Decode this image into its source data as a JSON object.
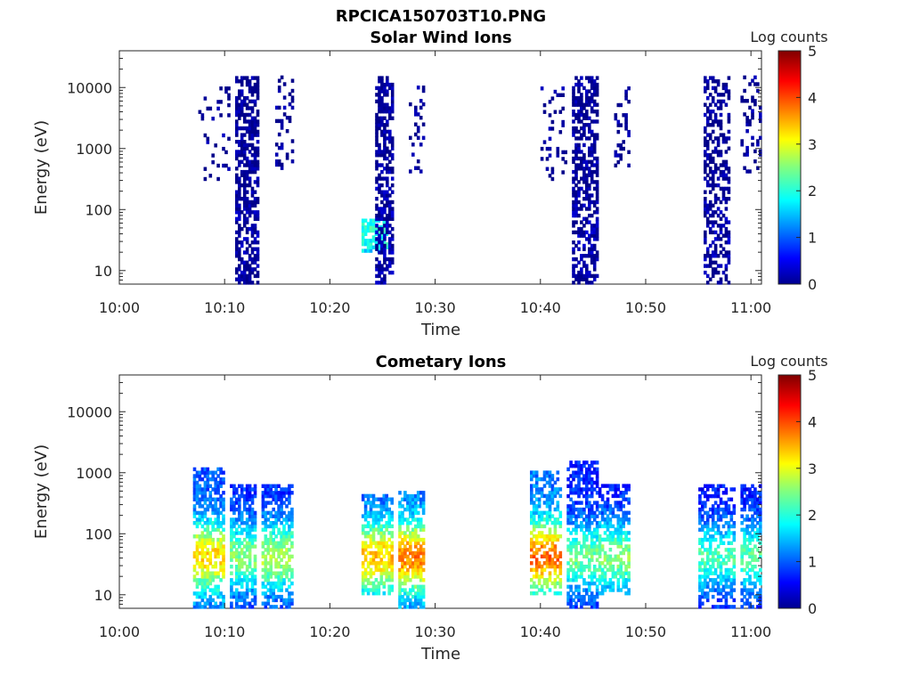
{
  "figure": {
    "title": "RPCICA150703T10.PNG"
  },
  "chart_data": [
    {
      "type": "heatmap",
      "title": "Solar Wind Ions",
      "xlabel": "Time",
      "ylabel": "Energy (eV)",
      "yscale": "log",
      "x_ticks": [
        "10:00",
        "10:10",
        "10:20",
        "10:30",
        "10:40",
        "10:50",
        "11:00"
      ],
      "y_ticks": [
        "10",
        "100",
        "1000",
        "10000"
      ],
      "xlim_minutes": [
        0,
        61
      ],
      "ylim": [
        6,
        40000
      ],
      "colorbar": {
        "label": "Log counts",
        "ticks": [
          "0",
          "1",
          "2",
          "3",
          "4",
          "5"
        ],
        "range": [
          0,
          5
        ],
        "colormap": "jet"
      },
      "bursts": [
        {
          "t_start": 7.5,
          "t_end": 10.5,
          "e_min": 300,
          "e_max": 10000,
          "level": 0.1,
          "density": 0.12
        },
        {
          "t_start": 11.0,
          "t_end": 13.2,
          "e_min": 6,
          "e_max": 15000,
          "level": 0.15,
          "density": 0.6
        },
        {
          "t_start": 14.8,
          "t_end": 16.5,
          "e_min": 400,
          "e_max": 15000,
          "level": 0.1,
          "density": 0.25
        },
        {
          "t_start": 23.0,
          "t_end": 25.5,
          "e_min": 20,
          "e_max": 70,
          "level": 1.9,
          "density": 0.8
        },
        {
          "t_start": 24.3,
          "t_end": 26.0,
          "e_min": 6,
          "e_max": 15000,
          "level": 0.2,
          "density": 0.6
        },
        {
          "t_start": 27.5,
          "t_end": 29.0,
          "e_min": 400,
          "e_max": 12000,
          "level": 0.1,
          "density": 0.22
        },
        {
          "t_start": 40.0,
          "t_end": 42.5,
          "e_min": 300,
          "e_max": 10000,
          "level": 0.1,
          "density": 0.15
        },
        {
          "t_start": 43.0,
          "t_end": 45.5,
          "e_min": 6,
          "e_max": 15000,
          "level": 0.15,
          "density": 0.55
        },
        {
          "t_start": 47.0,
          "t_end": 48.5,
          "e_min": 500,
          "e_max": 10000,
          "level": 0.1,
          "density": 0.25
        },
        {
          "t_start": 55.5,
          "t_end": 58.0,
          "e_min": 6,
          "e_max": 15000,
          "level": 0.15,
          "density": 0.45
        },
        {
          "t_start": 59.0,
          "t_end": 61.0,
          "e_min": 400,
          "e_max": 15000,
          "level": 0.1,
          "density": 0.2
        }
      ]
    },
    {
      "type": "heatmap",
      "title": "Cometary Ions",
      "xlabel": "Time",
      "ylabel": "Energy (eV)",
      "yscale": "log",
      "x_ticks": [
        "10:00",
        "10:10",
        "10:20",
        "10:30",
        "10:40",
        "10:50",
        "11:00"
      ],
      "y_ticks": [
        "10",
        "100",
        "1000",
        "10000"
      ],
      "xlim_minutes": [
        0,
        61
      ],
      "ylim": [
        6,
        40000
      ],
      "colorbar": {
        "label": "Log counts",
        "ticks": [
          "0",
          "1",
          "2",
          "3",
          "4",
          "5"
        ],
        "range": [
          0,
          5
        ],
        "colormap": "jet"
      },
      "bursts": [
        {
          "t_start": 7.0,
          "t_end": 10.0,
          "e_min": 6,
          "e_max": 1200,
          "level": 3.0,
          "density": 0.65
        },
        {
          "t_start": 10.5,
          "t_end": 13.0,
          "e_min": 6,
          "e_max": 600,
          "level": 2.3,
          "density": 0.65
        },
        {
          "t_start": 13.5,
          "t_end": 16.5,
          "e_min": 6,
          "e_max": 600,
          "level": 2.5,
          "density": 0.65
        },
        {
          "t_start": 23.0,
          "t_end": 26.0,
          "e_min": 10,
          "e_max": 400,
          "level": 3.1,
          "density": 0.7
        },
        {
          "t_start": 26.5,
          "t_end": 29.0,
          "e_min": 6,
          "e_max": 500,
          "level": 3.4,
          "density": 0.7
        },
        {
          "t_start": 39.0,
          "t_end": 42.0,
          "e_min": 10,
          "e_max": 1000,
          "level": 3.5,
          "density": 0.6
        },
        {
          "t_start": 42.5,
          "t_end": 45.5,
          "e_min": 6,
          "e_max": 1500,
          "level": 2.2,
          "density": 0.6
        },
        {
          "t_start": 45.5,
          "t_end": 48.5,
          "e_min": 10,
          "e_max": 600,
          "level": 2.3,
          "density": 0.6
        },
        {
          "t_start": 55.0,
          "t_end": 58.5,
          "e_min": 6,
          "e_max": 600,
          "level": 2.0,
          "density": 0.6
        },
        {
          "t_start": 59.0,
          "t_end": 61.0,
          "e_min": 6,
          "e_max": 600,
          "level": 2.1,
          "density": 0.6
        }
      ]
    }
  ]
}
